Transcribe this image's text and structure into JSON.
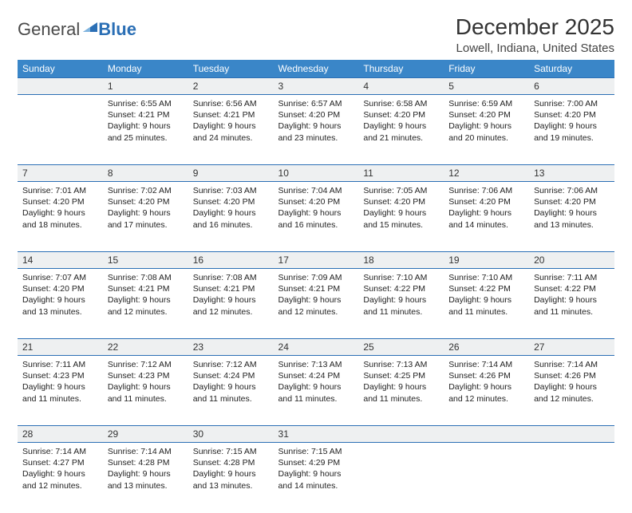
{
  "logo": {
    "general": "General",
    "blue": "Blue"
  },
  "title": "December 2025",
  "location": "Lowell, Indiana, United States",
  "colors": {
    "header_bg": "#3a86c8",
    "header_fg": "#ffffff",
    "daynum_bg": "#eef0f1",
    "rule": "#2b6fb5",
    "text": "#222222",
    "logo_gray": "#4a4a4a",
    "logo_blue": "#2b6fb5"
  },
  "typography": {
    "title_fontsize": 28,
    "location_fontsize": 15,
    "header_fontsize": 12,
    "daynum_fontsize": 12,
    "cell_fontsize": 10.5
  },
  "day_headers": [
    "Sunday",
    "Monday",
    "Tuesday",
    "Wednesday",
    "Thursday",
    "Friday",
    "Saturday"
  ],
  "weeks": [
    {
      "nums": [
        "",
        "1",
        "2",
        "3",
        "4",
        "5",
        "6"
      ],
      "cells": [
        null,
        {
          "sunrise": "6:55 AM",
          "sunset": "4:21 PM",
          "daylight": "9 hours and 25 minutes."
        },
        {
          "sunrise": "6:56 AM",
          "sunset": "4:21 PM",
          "daylight": "9 hours and 24 minutes."
        },
        {
          "sunrise": "6:57 AM",
          "sunset": "4:20 PM",
          "daylight": "9 hours and 23 minutes."
        },
        {
          "sunrise": "6:58 AM",
          "sunset": "4:20 PM",
          "daylight": "9 hours and 21 minutes."
        },
        {
          "sunrise": "6:59 AM",
          "sunset": "4:20 PM",
          "daylight": "9 hours and 20 minutes."
        },
        {
          "sunrise": "7:00 AM",
          "sunset": "4:20 PM",
          "daylight": "9 hours and 19 minutes."
        }
      ]
    },
    {
      "nums": [
        "7",
        "8",
        "9",
        "10",
        "11",
        "12",
        "13"
      ],
      "cells": [
        {
          "sunrise": "7:01 AM",
          "sunset": "4:20 PM",
          "daylight": "9 hours and 18 minutes."
        },
        {
          "sunrise": "7:02 AM",
          "sunset": "4:20 PM",
          "daylight": "9 hours and 17 minutes."
        },
        {
          "sunrise": "7:03 AM",
          "sunset": "4:20 PM",
          "daylight": "9 hours and 16 minutes."
        },
        {
          "sunrise": "7:04 AM",
          "sunset": "4:20 PM",
          "daylight": "9 hours and 16 minutes."
        },
        {
          "sunrise": "7:05 AM",
          "sunset": "4:20 PM",
          "daylight": "9 hours and 15 minutes."
        },
        {
          "sunrise": "7:06 AM",
          "sunset": "4:20 PM",
          "daylight": "9 hours and 14 minutes."
        },
        {
          "sunrise": "7:06 AM",
          "sunset": "4:20 PM",
          "daylight": "9 hours and 13 minutes."
        }
      ]
    },
    {
      "nums": [
        "14",
        "15",
        "16",
        "17",
        "18",
        "19",
        "20"
      ],
      "cells": [
        {
          "sunrise": "7:07 AM",
          "sunset": "4:20 PM",
          "daylight": "9 hours and 13 minutes."
        },
        {
          "sunrise": "7:08 AM",
          "sunset": "4:21 PM",
          "daylight": "9 hours and 12 minutes."
        },
        {
          "sunrise": "7:08 AM",
          "sunset": "4:21 PM",
          "daylight": "9 hours and 12 minutes."
        },
        {
          "sunrise": "7:09 AM",
          "sunset": "4:21 PM",
          "daylight": "9 hours and 12 minutes."
        },
        {
          "sunrise": "7:10 AM",
          "sunset": "4:22 PM",
          "daylight": "9 hours and 11 minutes."
        },
        {
          "sunrise": "7:10 AM",
          "sunset": "4:22 PM",
          "daylight": "9 hours and 11 minutes."
        },
        {
          "sunrise": "7:11 AM",
          "sunset": "4:22 PM",
          "daylight": "9 hours and 11 minutes."
        }
      ]
    },
    {
      "nums": [
        "21",
        "22",
        "23",
        "24",
        "25",
        "26",
        "27"
      ],
      "cells": [
        {
          "sunrise": "7:11 AM",
          "sunset": "4:23 PM",
          "daylight": "9 hours and 11 minutes."
        },
        {
          "sunrise": "7:12 AM",
          "sunset": "4:23 PM",
          "daylight": "9 hours and 11 minutes."
        },
        {
          "sunrise": "7:12 AM",
          "sunset": "4:24 PM",
          "daylight": "9 hours and 11 minutes."
        },
        {
          "sunrise": "7:13 AM",
          "sunset": "4:24 PM",
          "daylight": "9 hours and 11 minutes."
        },
        {
          "sunrise": "7:13 AM",
          "sunset": "4:25 PM",
          "daylight": "9 hours and 11 minutes."
        },
        {
          "sunrise": "7:14 AM",
          "sunset": "4:26 PM",
          "daylight": "9 hours and 12 minutes."
        },
        {
          "sunrise": "7:14 AM",
          "sunset": "4:26 PM",
          "daylight": "9 hours and 12 minutes."
        }
      ]
    },
    {
      "nums": [
        "28",
        "29",
        "30",
        "31",
        "",
        "",
        ""
      ],
      "cells": [
        {
          "sunrise": "7:14 AM",
          "sunset": "4:27 PM",
          "daylight": "9 hours and 12 minutes."
        },
        {
          "sunrise": "7:14 AM",
          "sunset": "4:28 PM",
          "daylight": "9 hours and 13 minutes."
        },
        {
          "sunrise": "7:15 AM",
          "sunset": "4:28 PM",
          "daylight": "9 hours and 13 minutes."
        },
        {
          "sunrise": "7:15 AM",
          "sunset": "4:29 PM",
          "daylight": "9 hours and 14 minutes."
        },
        null,
        null,
        null
      ]
    }
  ],
  "labels": {
    "sunrise": "Sunrise:",
    "sunset": "Sunset:",
    "daylight": "Daylight:"
  }
}
